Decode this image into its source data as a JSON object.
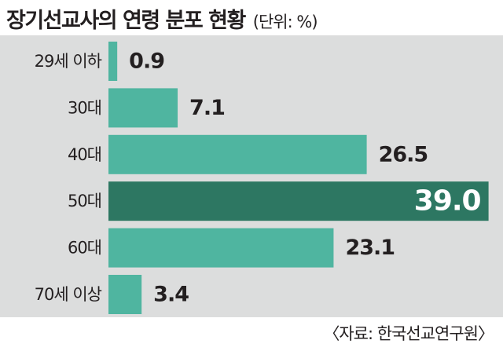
{
  "title": "장기선교사의 연령 분포 현황",
  "unit": "(단위: %)",
  "source": "〈자료: 한국선교연구원〉",
  "colors": {
    "bar": "#4fb5a0",
    "highlight_bar": "#2d7762",
    "panel": "#dcdddd",
    "text": "#231f20",
    "highlight_label": "#ffffff"
  },
  "chart_data": {
    "type": "bar",
    "orientation": "horizontal",
    "categories": [
      "29세 이하",
      "30대",
      "40대",
      "50대",
      "60대",
      "70세 이상"
    ],
    "values": [
      0.9,
      7.1,
      26.5,
      39.0,
      23.1,
      3.4
    ],
    "value_labels": [
      "0.9",
      "7.1",
      "26.5",
      "39.0",
      "23.1",
      "3.4"
    ],
    "highlight_index": 3,
    "xlim": [
      0,
      40
    ],
    "grid": false,
    "legend": "none"
  }
}
